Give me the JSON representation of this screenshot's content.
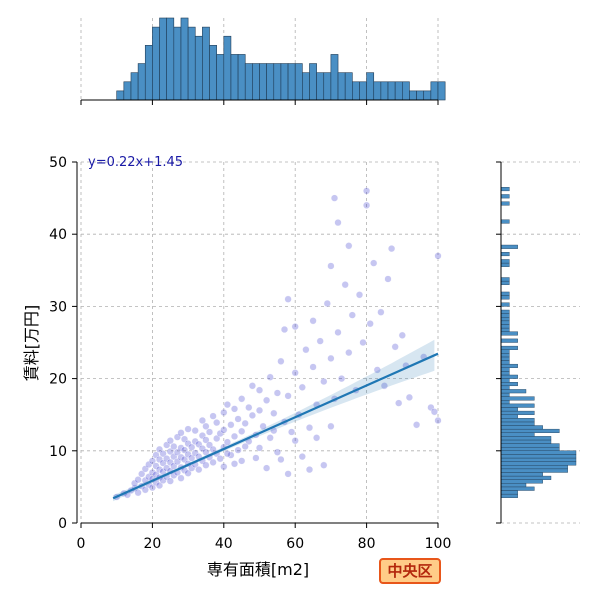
{
  "chart_data": {
    "type": "scatter",
    "xlabel": "専有面積[m2]",
    "ylabel": "賃料[万円]",
    "xlim": [
      0,
      100
    ],
    "ylim": [
      0,
      50
    ],
    "x_ticks": [
      0,
      20,
      40,
      60,
      80,
      100
    ],
    "y_ticks": [
      0,
      10,
      20,
      30,
      40,
      50
    ],
    "grid": true,
    "regression": {
      "equation_label": "y=0.22x+1.45",
      "slope": 0.22,
      "intercept": 1.45,
      "x_range": [
        9,
        100
      ]
    },
    "scatter_points": [
      [
        10,
        3.6
      ],
      [
        12,
        4.1
      ],
      [
        13,
        3.9
      ],
      [
        14,
        4.5
      ],
      [
        15,
        4.8
      ],
      [
        15,
        5.5
      ],
      [
        16,
        4.2
      ],
      [
        16,
        6.0
      ],
      [
        17,
        5.1
      ],
      [
        17,
        6.8
      ],
      [
        18,
        4.6
      ],
      [
        18,
        5.9
      ],
      [
        18,
        7.5
      ],
      [
        19,
        5.3
      ],
      [
        19,
        6.4
      ],
      [
        19,
        8.1
      ],
      [
        20,
        4.9
      ],
      [
        20,
        6.1
      ],
      [
        20,
        7.0
      ],
      [
        20,
        8.6
      ],
      [
        21,
        5.6
      ],
      [
        21,
        6.7
      ],
      [
        21,
        7.9
      ],
      [
        21,
        9.4
      ],
      [
        22,
        5.2
      ],
      [
        22,
        6.3
      ],
      [
        22,
        7.4
      ],
      [
        22,
        8.8
      ],
      [
        22,
        10.2
      ],
      [
        23,
        5.9
      ],
      [
        23,
        7.1
      ],
      [
        23,
        8.3
      ],
      [
        23,
        9.6
      ],
      [
        24,
        6.4
      ],
      [
        24,
        7.6
      ],
      [
        24,
        8.9
      ],
      [
        24,
        10.8
      ],
      [
        25,
        5.8
      ],
      [
        25,
        7.2
      ],
      [
        25,
        8.4
      ],
      [
        25,
        9.9
      ],
      [
        25,
        11.4
      ],
      [
        26,
        6.6
      ],
      [
        26,
        7.9
      ],
      [
        26,
        9.2
      ],
      [
        26,
        10.6
      ],
      [
        27,
        7.0
      ],
      [
        27,
        8.5
      ],
      [
        27,
        9.8
      ],
      [
        27,
        11.9
      ],
      [
        28,
        6.2
      ],
      [
        28,
        7.7
      ],
      [
        28,
        9.1
      ],
      [
        28,
        10.4
      ],
      [
        28,
        12.5
      ],
      [
        29,
        7.3
      ],
      [
        29,
        8.8
      ],
      [
        29,
        10.1
      ],
      [
        29,
        11.6
      ],
      [
        30,
        6.9
      ],
      [
        30,
        8.2
      ],
      [
        30,
        9.5
      ],
      [
        30,
        11.0
      ],
      [
        30,
        13.0
      ],
      [
        31,
        7.6
      ],
      [
        31,
        9.0
      ],
      [
        31,
        10.5
      ],
      [
        32,
        8.1
      ],
      [
        32,
        9.7
      ],
      [
        32,
        11.3
      ],
      [
        32,
        12.8
      ],
      [
        33,
        7.4
      ],
      [
        33,
        9.2
      ],
      [
        33,
        10.9
      ],
      [
        34,
        8.6
      ],
      [
        34,
        10.3
      ],
      [
        34,
        12.1
      ],
      [
        34,
        14.2
      ],
      [
        35,
        8.0
      ],
      [
        35,
        9.8
      ],
      [
        35,
        11.5
      ],
      [
        35,
        13.4
      ],
      [
        36,
        9.1
      ],
      [
        36,
        10.8
      ],
      [
        36,
        12.6
      ],
      [
        37,
        8.4
      ],
      [
        37,
        10.2
      ],
      [
        37,
        14.8
      ],
      [
        38,
        9.6
      ],
      [
        38,
        11.7
      ],
      [
        38,
        13.9
      ],
      [
        39,
        8.9
      ],
      [
        39,
        12.4
      ],
      [
        40,
        7.8
      ],
      [
        40,
        10.5
      ],
      [
        40,
        12.9
      ],
      [
        40,
        15.3
      ],
      [
        41,
        11.2
      ],
      [
        41,
        16.4
      ],
      [
        42,
        9.4
      ],
      [
        42,
        13.6
      ],
      [
        43,
        12.0
      ],
      [
        43,
        15.8
      ],
      [
        44,
        10.1
      ],
      [
        44,
        14.4
      ],
      [
        45,
        8.6
      ],
      [
        45,
        12.7
      ],
      [
        45,
        17.2
      ],
      [
        46,
        13.8
      ],
      [
        47,
        11.3
      ],
      [
        47,
        16.0
      ],
      [
        48,
        14.9
      ],
      [
        48,
        19.0
      ],
      [
        49,
        12.2
      ],
      [
        50,
        10.4
      ],
      [
        50,
        15.6
      ],
      [
        50,
        18.4
      ],
      [
        51,
        13.4
      ],
      [
        52,
        17.0
      ],
      [
        53,
        11.8
      ],
      [
        53,
        20.2
      ],
      [
        54,
        15.2
      ],
      [
        55,
        9.8
      ],
      [
        55,
        18.0
      ],
      [
        56,
        22.4
      ],
      [
        57,
        14.0
      ],
      [
        57,
        26.8
      ],
      [
        58,
        17.6
      ],
      [
        58,
        31.0
      ],
      [
        59,
        12.6
      ],
      [
        60,
        20.8
      ],
      [
        60,
        27.2
      ],
      [
        61,
        15.0
      ],
      [
        62,
        18.8
      ],
      [
        63,
        24.0
      ],
      [
        64,
        13.2
      ],
      [
        65,
        21.6
      ],
      [
        65,
        28.0
      ],
      [
        66,
        16.4
      ],
      [
        67,
        25.2
      ],
      [
        68,
        19.6
      ],
      [
        69,
        30.4
      ],
      [
        70,
        22.8
      ],
      [
        70,
        35.6
      ],
      [
        71,
        17.2
      ],
      [
        71,
        45.0
      ],
      [
        72,
        26.4
      ],
      [
        72,
        41.6
      ],
      [
        73,
        20.0
      ],
      [
        74,
        33.0
      ],
      [
        75,
        23.6
      ],
      [
        75,
        38.4
      ],
      [
        76,
        28.8
      ],
      [
        77,
        18.4
      ],
      [
        78,
        31.6
      ],
      [
        79,
        25.0
      ],
      [
        80,
        44.0
      ],
      [
        80,
        46.0
      ],
      [
        81,
        27.6
      ],
      [
        82,
        36.0
      ],
      [
        83,
        21.2
      ],
      [
        84,
        29.2
      ],
      [
        85,
        19.0
      ],
      [
        86,
        33.8
      ],
      [
        87,
        38.0
      ],
      [
        88,
        24.4
      ],
      [
        89,
        16.6
      ],
      [
        90,
        26.0
      ],
      [
        91,
        21.8
      ],
      [
        92,
        17.4
      ],
      [
        94,
        13.6
      ],
      [
        96,
        23.0
      ],
      [
        98,
        16.0
      ],
      [
        99,
        15.4
      ],
      [
        100,
        37.0
      ],
      [
        100,
        14.2
      ],
      [
        41,
        9.6
      ],
      [
        43,
        8.2
      ],
      [
        46,
        10.6
      ],
      [
        49,
        9.0
      ],
      [
        52,
        7.6
      ],
      [
        54,
        12.8
      ],
      [
        56,
        8.8
      ],
      [
        58,
        6.8
      ],
      [
        60,
        11.4
      ],
      [
        62,
        9.2
      ],
      [
        64,
        7.4
      ],
      [
        66,
        11.8
      ],
      [
        68,
        8.0
      ],
      [
        70,
        13.4
      ]
    ]
  }
}
